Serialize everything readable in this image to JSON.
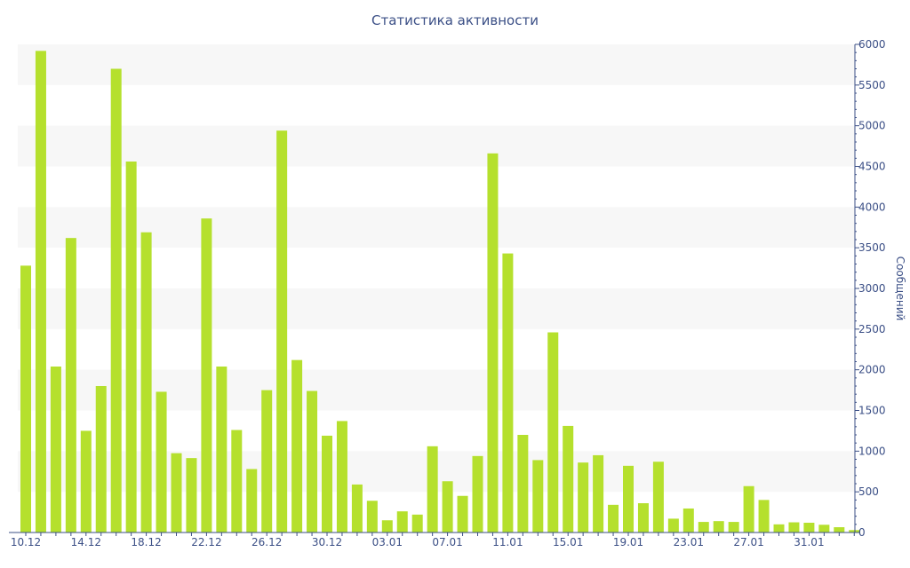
{
  "chart_data": {
    "type": "bar",
    "title": "Статистика активности",
    "xlabel": "",
    "ylabel": "Сообщений",
    "ylim": [
      0,
      6000
    ],
    "yticks": [
      0,
      500,
      1000,
      1500,
      2000,
      2500,
      3000,
      3500,
      4000,
      4500,
      5000,
      5500,
      6000
    ],
    "y_axis_side": "right",
    "grid": "horizontal bands",
    "legend": "none",
    "bar_color": "#b5e02d",
    "categories": [
      "10.12",
      "11.12",
      "12.12",
      "13.12",
      "14.12",
      "15.12",
      "16.12",
      "17.12",
      "18.12",
      "19.12",
      "20.12",
      "21.12",
      "22.12",
      "23.12",
      "24.12",
      "25.12",
      "26.12",
      "27.12",
      "28.12",
      "29.12",
      "30.12",
      "31.12",
      "01.01",
      "02.01",
      "03.01",
      "04.01",
      "05.01",
      "06.01",
      "07.01",
      "08.01",
      "09.01",
      "10.01",
      "11.01",
      "12.01",
      "13.01",
      "14.01",
      "15.01",
      "16.01",
      "17.01",
      "18.01",
      "19.01",
      "20.01",
      "21.01",
      "22.01",
      "23.01",
      "24.01",
      "25.01",
      "26.01",
      "27.01",
      "28.01",
      "29.01",
      "30.01",
      "31.01",
      "01.02",
      "02.02",
      "03.02"
    ],
    "values": [
      3280,
      5920,
      2040,
      3620,
      1250,
      1800,
      5700,
      4560,
      3690,
      1730,
      975,
      915,
      3860,
      2040,
      1260,
      780,
      1750,
      4940,
      2120,
      1740,
      1190,
      1370,
      590,
      390,
      150,
      260,
      220,
      1060,
      630,
      450,
      940,
      4660,
      3430,
      1200,
      890,
      2460,
      1310,
      860,
      950,
      340,
      820,
      360,
      870,
      170,
      295,
      130,
      140,
      130,
      570,
      400,
      100,
      125,
      120,
      95,
      65,
      30
    ],
    "xtick_labels": [
      "10.12",
      "14.12",
      "18.12",
      "22.12",
      "26.12",
      "30.12",
      "03.01",
      "07.01",
      "11.01",
      "15.01",
      "19.01",
      "23.01",
      "27.01",
      "31.01"
    ]
  }
}
